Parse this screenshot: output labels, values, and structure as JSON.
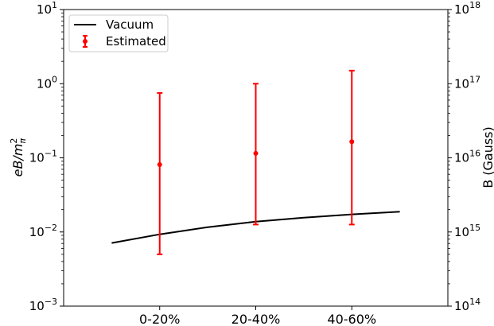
{
  "chart_data": {
    "type": "line",
    "log_scale_y": true,
    "left_axis": {
      "label_math": {
        "base": "eB/m",
        "sup": "2",
        "sub": "π"
      },
      "ylim": [
        0.001,
        10
      ],
      "ticks": [
        {
          "base": "10",
          "exp": "−3"
        },
        {
          "base": "10",
          "exp": "−2"
        },
        {
          "base": "10",
          "exp": "−1"
        },
        {
          "base": "10",
          "exp": "0"
        },
        {
          "base": "10",
          "exp": "1"
        }
      ]
    },
    "right_axis": {
      "label": "B (Gauss)",
      "ticks": [
        {
          "base": "10",
          "exp": "14"
        },
        {
          "base": "10",
          "exp": "15"
        },
        {
          "base": "10",
          "exp": "16"
        },
        {
          "base": "10",
          "exp": "17"
        },
        {
          "base": "10",
          "exp": "18"
        }
      ]
    },
    "categories": [
      "0-20%",
      "20-40%",
      "40-60%"
    ],
    "xlim": [
      -1,
      3
    ],
    "series": [
      {
        "name": "Vacuum",
        "kind": "line",
        "color": "#000000",
        "x": [
          -0.5,
          0,
          0.5,
          1,
          1.5,
          2,
          2.5
        ],
        "y": [
          0.0071,
          0.0093,
          0.0116,
          0.0138,
          0.0156,
          0.0173,
          0.0188
        ]
      },
      {
        "name": "Estimated",
        "kind": "errorbar",
        "color": "#ff0000",
        "x": [
          0,
          1,
          2
        ],
        "y": [
          0.081,
          0.115,
          0.165
        ],
        "y_low": [
          0.005,
          0.0126,
          0.0126
        ],
        "y_high": [
          0.75,
          1.0,
          1.5
        ]
      }
    ],
    "legend_position": "upper-left",
    "grid": false
  }
}
